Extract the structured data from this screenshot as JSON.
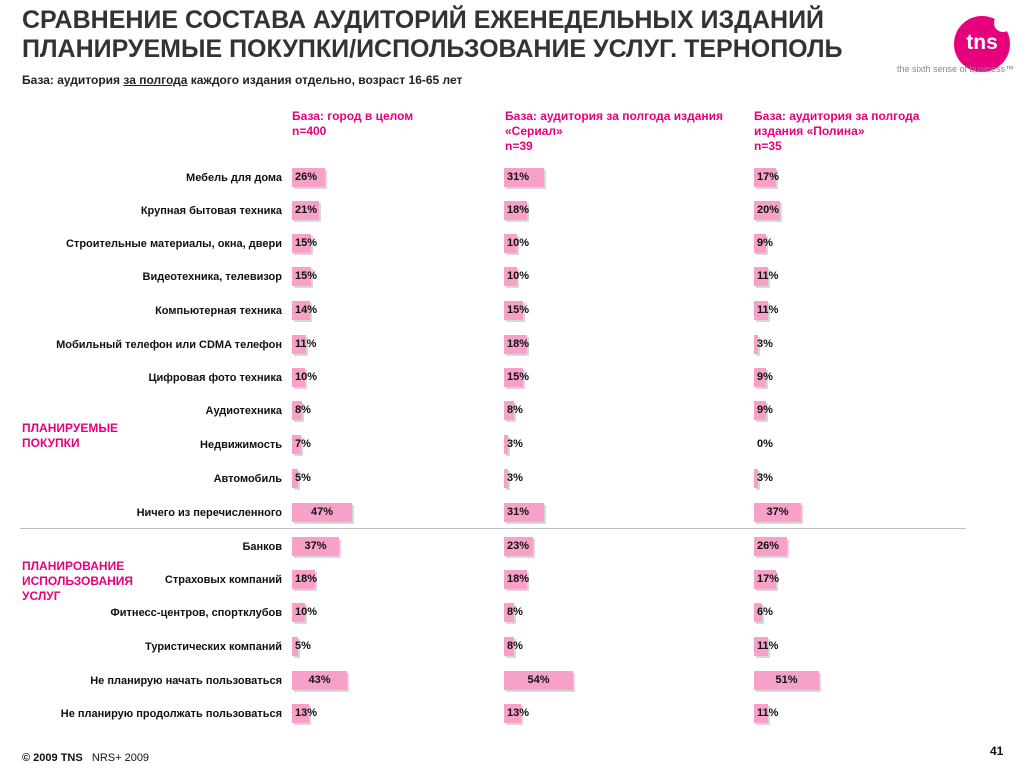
{
  "header": {
    "title_line1": "СРАВНЕНИЕ СОСТАВА АУДИТОРИЙ ЕЖЕНЕДЕЛЬНЫХ ИЗДАНИЙ",
    "title_line2": "ПЛАНИРУЕМЫЕ ПОКУПКИ/ИСПОЛЬЗОВАНИЕ УСЛУГ. ТЕРНОПОЛЬ",
    "base_prefix": "База: аудитория ",
    "base_underlined": "за полгода",
    "base_suffix": " каждого издания отдельно, возраст 16-65 лет"
  },
  "brand": {
    "logo": "tns",
    "tagline": "the sixth sense of business™",
    "accent": "#e6007e",
    "bar_color": "#f7a1c9"
  },
  "groups": [
    {
      "label_line1": "ПЛАНИРУЕМЫЕ",
      "label_line2": "ПОКУПКИ",
      "label_line3": ""
    },
    {
      "label_line1": "ПЛАНИРОВАНИЕ",
      "label_line2": "ИСПОЛЬЗОВАНИЯ",
      "label_line3": "УСЛУГ"
    }
  ],
  "chart_data": {
    "type": "bar",
    "orientation": "horizontal",
    "unit": "%",
    "xlim": [
      0,
      100
    ],
    "categories": [
      "Мебель для дома",
      "Крупная бытовая техника",
      "Строительные материалы, окна, двери",
      "Видеотехника, телевизор",
      "Компьютерная техника",
      "Мобильный телефон или CDMA телефон",
      "Цифровая фото техника",
      "Аудиотехника",
      "Недвижимость",
      "Автомобиль",
      "Ничего из перечисленного",
      "Банков",
      "Страховых компаний",
      "Фитнесс-центров, спортклубов",
      "Туристических компаний",
      "Не планирую начать пользоваться",
      "Не планирую продолжать пользоваться"
    ],
    "series": [
      {
        "header_line1": "База: город в целом",
        "header_line2": "n=400",
        "header_line3": "",
        "values": [
          26,
          21,
          15,
          15,
          14,
          11,
          10,
          8,
          7,
          5,
          47,
          37,
          18,
          10,
          5,
          43,
          13
        ]
      },
      {
        "header_line1": "База: аудитория за полгода издания",
        "header_line2": "«Сериал»",
        "header_line3": "n=39",
        "values": [
          31,
          18,
          10,
          10,
          15,
          18,
          15,
          8,
          3,
          3,
          31,
          23,
          18,
          8,
          8,
          54,
          13
        ]
      },
      {
        "header_line1": "База: аудитория за полгода",
        "header_line2": "издания «Полина»",
        "header_line3": "n=35",
        "values": [
          17,
          20,
          9,
          11,
          11,
          3,
          9,
          9,
          0,
          3,
          37,
          26,
          17,
          6,
          11,
          51,
          11
        ]
      }
    ]
  },
  "footer": {
    "copyright": "© 2009 TNS",
    "source": "NRS+ 2009",
    "page_number": "41"
  }
}
